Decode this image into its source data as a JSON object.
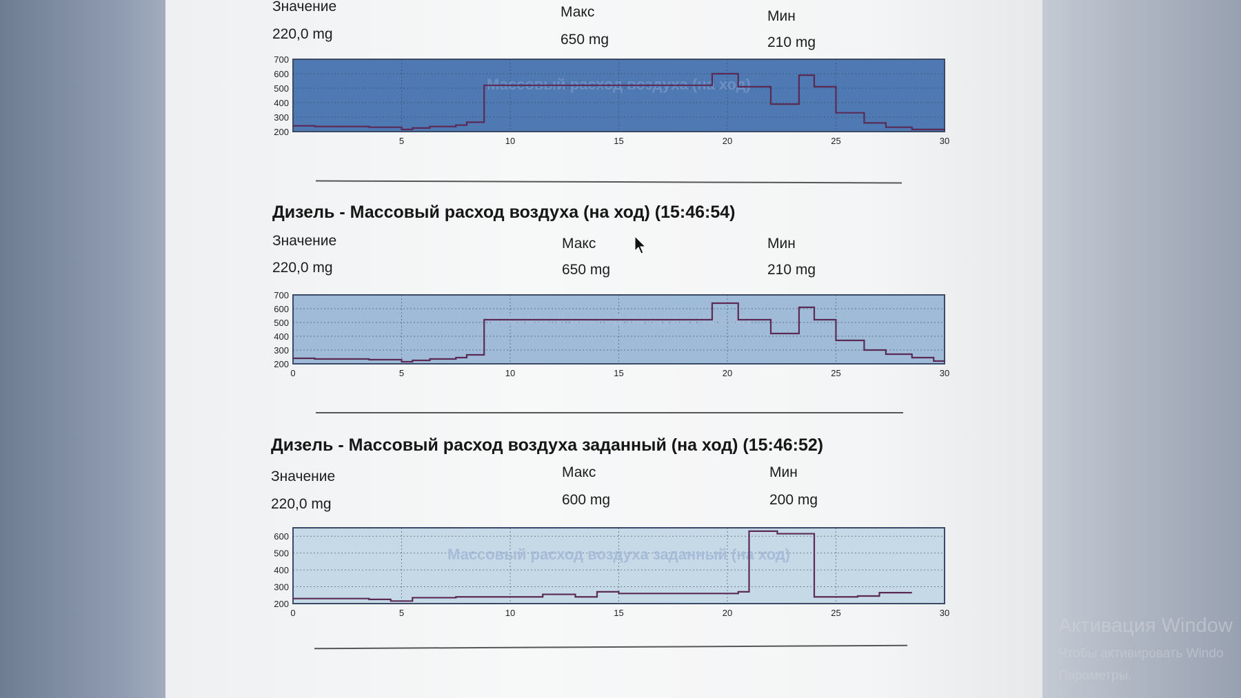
{
  "sections": [
    {
      "title": "",
      "value_label": "Значение",
      "value": "220,0 mg",
      "max_label": "Макс",
      "max": "650 mg",
      "min_label": "Мин",
      "min": "210 mg"
    },
    {
      "title": "Дизель - Массовый расход воздуха (на ход) (15:46:54)",
      "value_label": "Значение",
      "value": "220,0 mg",
      "max_label": "Макс",
      "max": "650 mg",
      "min_label": "Мин",
      "min": "210 mg"
    },
    {
      "title": "Дизель - Массовый расход воздуха заданный (на ход) (15:46:52)",
      "value_label": "Значение",
      "value": "220,0 mg",
      "max_label": "Макс",
      "max": "600 mg",
      "min_label": "Мин",
      "min": "200 mg"
    }
  ],
  "colors": {
    "line": "#5a2a55",
    "bg_dark": "#4f79b2",
    "bg_mid": "#9fbbd8",
    "bg_light": "#c6d9e6"
  },
  "chart_data": [
    {
      "type": "line",
      "title": "Массовый расход воздуха (на ход)",
      "xlabel": "",
      "ylabel": "",
      "xlim": [
        0,
        30
      ],
      "ylim": [
        200,
        700
      ],
      "xticks": [
        "5",
        "10",
        "15",
        "20",
        "25",
        "30"
      ],
      "yticks": [
        "700",
        "600",
        "500",
        "400",
        "300",
        "200"
      ],
      "grid": true,
      "series": [
        {
          "x": [
            0,
            1,
            3.5,
            5,
            5.5,
            6.3,
            7.5,
            8,
            8.8,
            8.8,
            11,
            13,
            18,
            19.3,
            20.5,
            21,
            22,
            23.3,
            24,
            25,
            25,
            26.3,
            27.3,
            28.5,
            29.5,
            30
          ],
          "y": [
            240,
            235,
            230,
            215,
            225,
            235,
            245,
            265,
            265,
            520,
            520,
            520,
            520,
            600,
            510,
            510,
            390,
            590,
            510,
            510,
            330,
            260,
            230,
            215,
            215,
            220
          ]
        }
      ]
    },
    {
      "type": "line",
      "title": "Массовый расход воздуха (на ход)",
      "xlabel": "",
      "ylabel": "",
      "xlim": [
        0,
        30
      ],
      "ylim": [
        200,
        700
      ],
      "xticks": [
        "0",
        "5",
        "10",
        "15",
        "20",
        "25",
        "30"
      ],
      "yticks": [
        "700",
        "600",
        "500",
        "400",
        "300",
        "200"
      ],
      "grid": true,
      "series": [
        {
          "x": [
            0,
            1,
            3.5,
            5,
            5.5,
            6.3,
            7.5,
            8,
            8.8,
            8.8,
            11,
            13,
            18,
            19.3,
            20.5,
            21,
            22,
            23.3,
            24,
            25,
            25,
            26.3,
            27.3,
            28.5,
            29.5,
            30
          ],
          "y": [
            240,
            235,
            230,
            215,
            225,
            235,
            245,
            265,
            265,
            520,
            520,
            520,
            520,
            640,
            520,
            520,
            420,
            610,
            520,
            520,
            370,
            300,
            270,
            245,
            220,
            215
          ]
        }
      ]
    },
    {
      "type": "line",
      "title": "Массовый расход воздуха заданный (на ход)",
      "xlabel": "",
      "ylabel": "",
      "xlim": [
        0,
        30
      ],
      "ylim": [
        200,
        650
      ],
      "xticks": [
        "0",
        "5",
        "10",
        "15",
        "20",
        "25",
        "30"
      ],
      "yticks": [
        "600",
        "500",
        "400",
        "300",
        "200"
      ],
      "grid": true,
      "series": [
        {
          "x": [
            0,
            3.5,
            4.5,
            5.5,
            7.5,
            11.5,
            13,
            14,
            15,
            20.5,
            21,
            22.3,
            23.5,
            24,
            26,
            27,
            28.5
          ],
          "y": [
            230,
            225,
            215,
            235,
            240,
            255,
            240,
            270,
            260,
            270,
            630,
            615,
            615,
            240,
            245,
            265,
            265
          ]
        }
      ]
    }
  ],
  "watermark": {
    "line1": "Активация Window",
    "line2": "Чтобы активировать Windo",
    "line3": "Параметры."
  }
}
